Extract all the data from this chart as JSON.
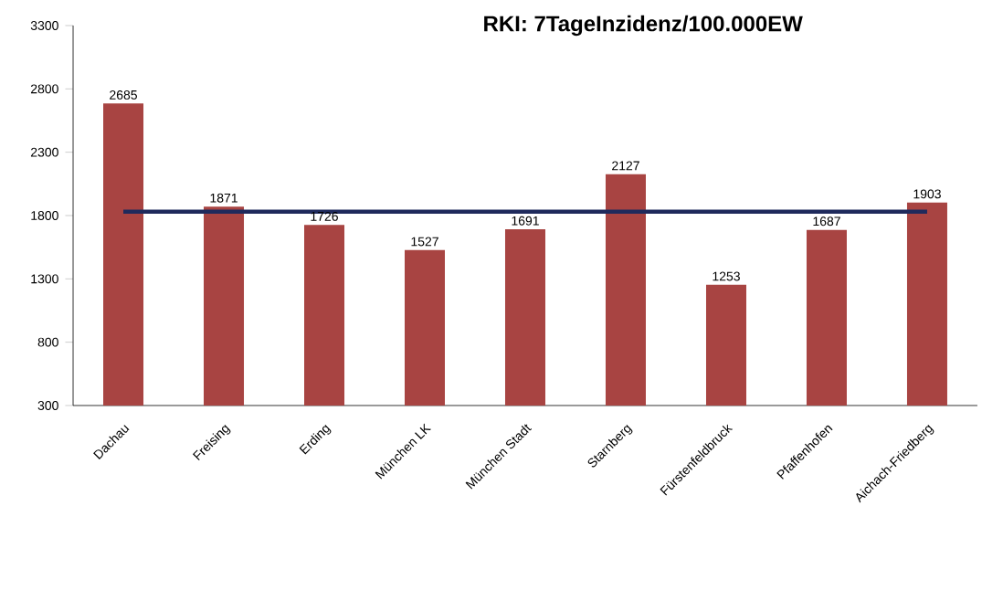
{
  "chart_data": {
    "type": "bar",
    "title": "RKI: 7TageInzidenz/100.000EW",
    "categories": [
      "Dachau",
      "Freising",
      "Erding",
      "München LK",
      "München Stadt",
      "Starnberg",
      "Fürstenfeldbruck",
      "Pfaffenhofen",
      "Aichach-Friedberg"
    ],
    "series": [
      {
        "color": "#a84442",
        "values": [
          2685,
          1871,
          1726,
          1527,
          1691,
          2127,
          1253,
          1687,
          1903
        ],
        "value_labels": [
          "2685",
          "1871",
          "1726",
          "1527",
          "1691",
          "2127",
          "1253",
          "1687",
          "1903"
        ]
      },
      {
        "type": "line",
        "color": "#1f2a5c",
        "values": [
          1830,
          1830,
          1830,
          1830,
          1830,
          1830,
          1830,
          1830,
          1830
        ]
      }
    ],
    "ylim": [
      300,
      3300
    ],
    "yticks": [
      300,
      800,
      1300,
      1800,
      2300,
      2800,
      3300
    ],
    "grid": false,
    "marker": "none"
  }
}
